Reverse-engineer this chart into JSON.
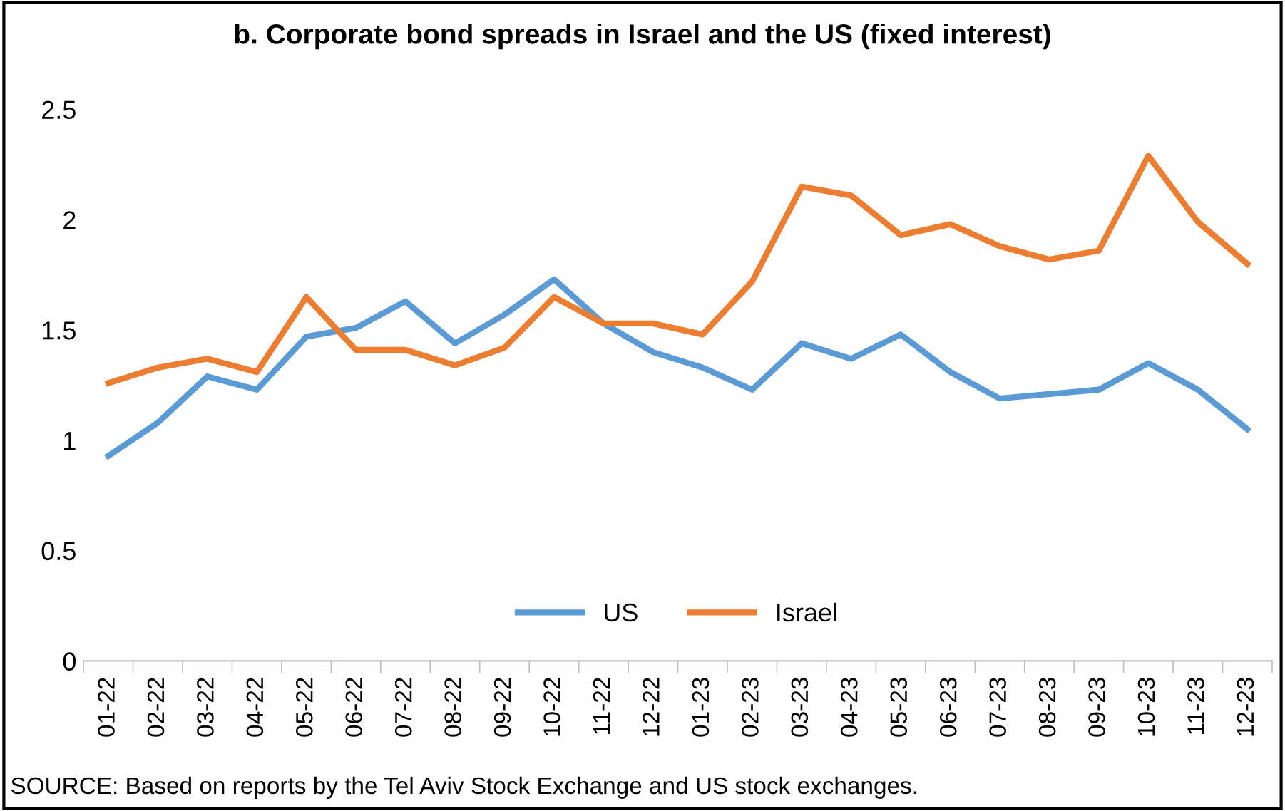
{
  "chart_data": {
    "type": "line",
    "title": "b. Corporate bond spreads in Israel and the US (fixed interest)",
    "categories": [
      "01-22",
      "02-22",
      "03-22",
      "04-22",
      "05-22",
      "06-22",
      "07-22",
      "08-22",
      "09-22",
      "10-22",
      "11-22",
      "12-22",
      "01-23",
      "02-23",
      "03-23",
      "04-23",
      "05-23",
      "06-23",
      "07-23",
      "08-23",
      "09-23",
      "10-23",
      "11-23",
      "12-23"
    ],
    "series": [
      {
        "name": "US",
        "color": "#5b9bd5",
        "values": [
          0.93,
          1.08,
          1.29,
          1.23,
          1.47,
          1.51,
          1.63,
          1.44,
          1.57,
          1.73,
          1.53,
          1.4,
          1.33,
          1.23,
          1.44,
          1.37,
          1.48,
          1.31,
          1.19,
          1.21,
          1.23,
          1.35,
          1.23,
          1.05
        ]
      },
      {
        "name": "Israel",
        "color": "#ed7d31",
        "values": [
          1.26,
          1.33,
          1.37,
          1.31,
          1.65,
          1.41,
          1.41,
          1.34,
          1.42,
          1.65,
          1.53,
          1.53,
          1.48,
          1.72,
          2.15,
          2.11,
          1.93,
          1.98,
          1.88,
          1.82,
          1.86,
          2.29,
          1.99,
          1.8
        ]
      }
    ],
    "ylim": [
      0,
      2.5
    ],
    "yticks": [
      0,
      0.5,
      1,
      1.5,
      2,
      2.5
    ],
    "grid": false,
    "legend": "bottom",
    "marker": "none",
    "line_style": "solid",
    "annotations": [
      "SOURCE: Based on reports by the Tel Aviv Stock Exchange and US stock exchanges."
    ]
  }
}
